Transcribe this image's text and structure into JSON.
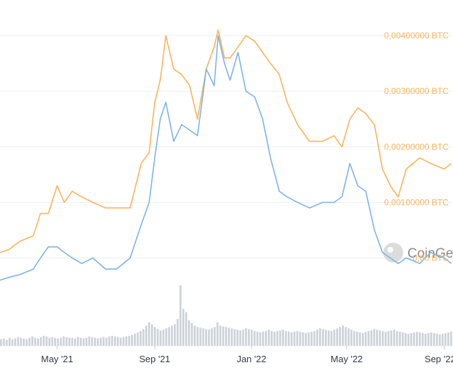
{
  "chart_data": {
    "type": "line",
    "title": "",
    "x_ticks": [
      "May '21",
      "Sep '21",
      "Jan '22",
      "May '22",
      "Sep '22"
    ],
    "x_range": [
      "2021-02-18",
      "2022-09-12"
    ],
    "y_right": {
      "unit": "BTC",
      "range": [
        -0.00025,
        0.00445
      ],
      "tick_values": [
        0.0,
        0.001,
        0.002,
        0.003,
        0.004
      ],
      "tick_labels": [
        "0,00 BTC",
        "0,00100000 BTC",
        "0,00200000 BTC",
        "0,00300000 BTC",
        "0,00400000 BTC"
      ]
    },
    "grid": true,
    "watermark": "CoinGecko",
    "series": [
      {
        "axis": "right",
        "color": "#f7b55a",
        "x": [
          "2021-02-18",
          "2021-03-01",
          "2021-03-15",
          "2021-04-01",
          "2021-04-10",
          "2021-04-20",
          "2021-05-01",
          "2021-05-10",
          "2021-05-20",
          "2021-06-01",
          "2021-06-15",
          "2021-07-01",
          "2021-07-15",
          "2021-08-01",
          "2021-08-15",
          "2021-08-25",
          "2021-09-01",
          "2021-09-08",
          "2021-09-15",
          "2021-09-25",
          "2021-10-05",
          "2021-10-15",
          "2021-10-25",
          "2021-11-05",
          "2021-11-15",
          "2021-11-20",
          "2021-11-28",
          "2021-12-05",
          "2021-12-15",
          "2021-12-25",
          "2022-01-05",
          "2022-01-15",
          "2022-01-25",
          "2022-02-05",
          "2022-02-15",
          "2022-02-28",
          "2022-03-15",
          "2022-04-01",
          "2022-04-15",
          "2022-04-25",
          "2022-05-05",
          "2022-05-15",
          "2022-05-25",
          "2022-06-05",
          "2022-06-15",
          "2022-06-25",
          "2022-07-05",
          "2022-07-15",
          "2022-08-01",
          "2022-08-15",
          "2022-09-01",
          "2022-09-10"
        ],
        "values": [
          0.0001,
          0.00015,
          0.0003,
          0.0004,
          0.0008,
          0.0008,
          0.0013,
          0.001,
          0.0012,
          0.0011,
          0.001,
          0.0009,
          0.0009,
          0.0009,
          0.0017,
          0.0019,
          0.0028,
          0.0032,
          0.004,
          0.0034,
          0.0033,
          0.0031,
          0.0025,
          0.0034,
          0.0038,
          0.0041,
          0.0036,
          0.0036,
          0.0038,
          0.004,
          0.0039,
          0.0037,
          0.0035,
          0.0033,
          0.0028,
          0.0024,
          0.0021,
          0.0021,
          0.0022,
          0.002,
          0.0025,
          0.0027,
          0.0026,
          0.0024,
          0.0016,
          0.0013,
          0.0011,
          0.0016,
          0.0018,
          0.0017,
          0.0016,
          0.0017
        ]
      },
      {
        "axis": "left",
        "color": "#7eb4e6",
        "x": [
          "2021-02-18",
          "2021-03-01",
          "2021-03-15",
          "2021-04-01",
          "2021-04-10",
          "2021-04-20",
          "2021-05-01",
          "2021-05-10",
          "2021-05-20",
          "2021-06-01",
          "2021-06-15",
          "2021-07-01",
          "2021-07-15",
          "2021-08-01",
          "2021-08-15",
          "2021-08-25",
          "2021-09-01",
          "2021-09-08",
          "2021-09-15",
          "2021-09-25",
          "2021-10-05",
          "2021-10-15",
          "2021-10-25",
          "2021-11-05",
          "2021-11-15",
          "2021-11-20",
          "2021-11-28",
          "2021-12-05",
          "2021-12-15",
          "2021-12-25",
          "2022-01-05",
          "2022-01-15",
          "2022-01-25",
          "2022-02-05",
          "2022-02-15",
          "2022-02-28",
          "2022-03-15",
          "2022-04-01",
          "2022-04-15",
          "2022-04-25",
          "2022-05-05",
          "2022-05-15",
          "2022-05-25",
          "2022-06-05",
          "2022-06-15",
          "2022-06-25",
          "2022-07-05",
          "2022-07-15",
          "2022-08-01",
          "2022-08-15",
          "2022-09-01",
          "2022-09-10"
        ],
        "values": [
          -0.0004,
          -0.00035,
          -0.0003,
          -0.0002,
          0.0,
          0.0002,
          0.0002,
          0.0001,
          0.0,
          -0.0001,
          0.0,
          -0.0002,
          -0.0002,
          0.0,
          0.0006,
          0.001,
          0.0018,
          0.0025,
          0.0028,
          0.0021,
          0.0024,
          0.0023,
          0.0022,
          0.0034,
          0.0031,
          0.004,
          0.0035,
          0.0032,
          0.0037,
          0.003,
          0.0029,
          0.0025,
          0.0018,
          0.0012,
          0.0011,
          0.001,
          0.0009,
          0.001,
          0.001,
          0.0011,
          0.0017,
          0.0013,
          0.0012,
          0.0005,
          0.0001,
          0.0,
          -0.0001,
          0.0,
          -0.0001,
          0.0001,
          0.0,
          -0.0001
        ]
      }
    ],
    "volume": {
      "color": "#cfd3da",
      "x_range": [
        "2021-02-18",
        "2022-09-12"
      ],
      "values": [
        10,
        11,
        9,
        12,
        10,
        11,
        13,
        12,
        11,
        10,
        12,
        14,
        12,
        11,
        13,
        15,
        14,
        12,
        13,
        12,
        11,
        12,
        14,
        13,
        12,
        12,
        11,
        13,
        12,
        11,
        12,
        14,
        13,
        12,
        11,
        12,
        13,
        12,
        14,
        15,
        14,
        13,
        12,
        13,
        14,
        15,
        16,
        18,
        20,
        22,
        25,
        30,
        35,
        32,
        28,
        25,
        23,
        24,
        26,
        28,
        30,
        32,
        40,
        90,
        55,
        50,
        38,
        34,
        30,
        28,
        27,
        26,
        25,
        24,
        26,
        28,
        35,
        30,
        29,
        28,
        27,
        26,
        25,
        24,
        23,
        24,
        26,
        25,
        24,
        22,
        21,
        20,
        21,
        22,
        24,
        22,
        21,
        22,
        23,
        24,
        22,
        21,
        20,
        21,
        22,
        21,
        20,
        19,
        20,
        21,
        22,
        24,
        26,
        25,
        24,
        23,
        22,
        24,
        26,
        28,
        30,
        28,
        26,
        24,
        22,
        21,
        20,
        19,
        21,
        22,
        23,
        25,
        24,
        23,
        22,
        21,
        22,
        23,
        24,
        22,
        21,
        20,
        19,
        18,
        19,
        20,
        21,
        20,
        19,
        18,
        19,
        20,
        19,
        18,
        17,
        18,
        19,
        20,
        21
      ]
    }
  }
}
